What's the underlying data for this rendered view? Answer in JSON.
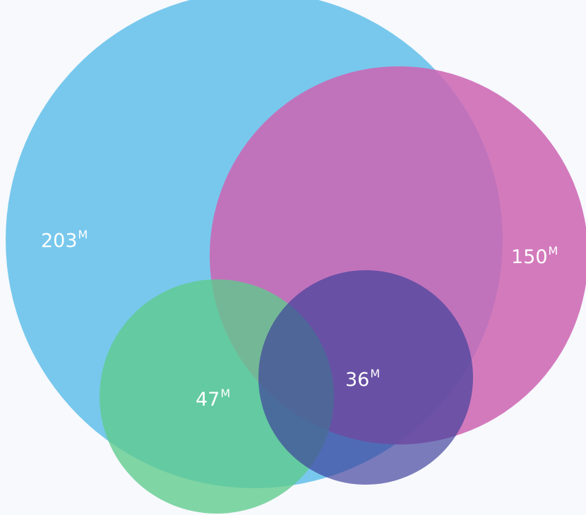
{
  "colors": {
    "blue": "#6cc3ec",
    "pink": "#cd64b2",
    "green": "#5fca8c",
    "indigo": "#3e3f9b",
    "background": "#f7f9fd",
    "label": "#ffffff"
  },
  "sets": [
    {
      "id": "blue",
      "value": "203",
      "unit": "M",
      "color": "#6cc3ec"
    },
    {
      "id": "pink",
      "value": "150",
      "unit": "M",
      "color": "#cd64b2"
    },
    {
      "id": "green",
      "value": "47",
      "unit": "M",
      "color": "#5fca8c"
    },
    {
      "id": "indigo",
      "value": "36",
      "unit": "M",
      "color": "#3e3f9b"
    }
  ]
}
